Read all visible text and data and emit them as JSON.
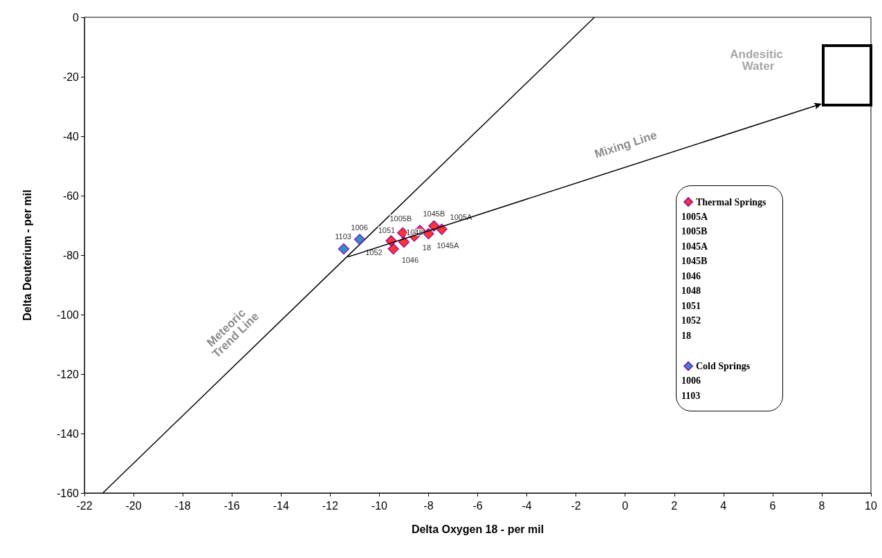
{
  "chart_data": {
    "type": "scatter",
    "xlabel": "Delta Oxygen 18 - per mil",
    "ylabel": "Delta Deuterium - per mil",
    "xlim": [
      -22,
      10
    ],
    "xticks": [
      -22,
      -20,
      -18,
      -16,
      -14,
      -12,
      -10,
      -8,
      -6,
      -4,
      -2,
      0,
      2,
      4,
      6,
      8,
      10
    ],
    "ylim": [
      -160,
      0
    ],
    "yticks": [
      -160,
      -140,
      -120,
      -100,
      -80,
      -60,
      -40,
      -20,
      0
    ],
    "grid": false,
    "legend": "right",
    "marker": "diamond",
    "series": [
      {
        "name": "Meteoric Trend Line",
        "type": "line",
        "marker": "none",
        "color": "#000000",
        "x": [
          -21.25,
          -1.25
        ],
        "values": [
          -160,
          0
        ]
      },
      {
        "name": "Thermal Springs",
        "color": "#ff0000",
        "x": [
          -7.46,
          -8.35,
          -8.0,
          -7.78,
          -9.43,
          -9.05,
          -9.0,
          -9.52,
          -8.58
        ],
        "values": [
          -71.3,
          -71.7,
          -72.8,
          -70.2,
          -77.9,
          -72.5,
          -75.6,
          -75.2,
          -73.6
        ]
      },
      {
        "name": "Cold Springs",
        "color": "#0070c0",
        "x": [
          -10.8,
          -11.45
        ],
        "values": [
          -74.7,
          -77.9
        ]
      }
    ],
    "annotations": [
      "Andesitic Water",
      "Mixing Line",
      {
        "text": "1005A",
        "x": -7.46,
        "y": -71.3
      },
      {
        "text": "1005B",
        "x": -8.35,
        "y": -71.7
      },
      {
        "text": "1045A",
        "x": -8.0,
        "y": -72.8
      },
      {
        "text": "1045B",
        "x": -7.78,
        "y": -70.2
      },
      {
        "text": "1046",
        "x": -9.43,
        "y": -77.9
      },
      {
        "text": "1048",
        "x": -9.05,
        "y": -72.5
      },
      {
        "text": "1051",
        "x": -9.0,
        "y": -75.6
      },
      {
        "text": "1052",
        "x": -9.52,
        "y": -75.2
      },
      {
        "text": "18",
        "x": -8.58,
        "y": -73.6
      },
      {
        "text": "1006",
        "x": -10.8,
        "y": -74.7
      },
      {
        "text": "1103",
        "x": -11.45,
        "y": -77.9
      },
      "1005A",
      "1005B",
      "1045A",
      "1045B",
      "1046",
      "1048",
      "1051",
      "1052",
      "18",
      "1006",
      "1103"
    ]
  }
}
